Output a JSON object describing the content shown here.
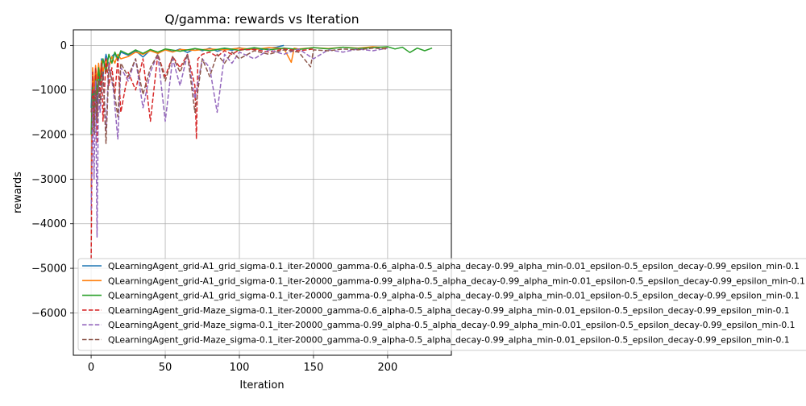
{
  "chart_data": {
    "type": "line",
    "title": "Q/gamma: rewards vs Iteration",
    "xlabel": "Iteration",
    "ylabel": "rewards",
    "xlim": [
      -12,
      243
    ],
    "ylim": [
      -6950,
      350
    ],
    "xticks": [
      0,
      50,
      100,
      150,
      200
    ],
    "yticks": [
      0,
      -1000,
      -2000,
      -3000,
      -4000,
      -5000,
      -6000
    ],
    "ytick_labels": [
      "0",
      "−1000",
      "−2000",
      "−3000",
      "−4000",
      "−5000",
      "−6000"
    ],
    "grid": true,
    "legend_position": "lower-right, overflowing the axes",
    "series": [
      {
        "name": "QLearningAgent_grid-A1_grid_sigma-0.1_iter-20000_gamma-0.6_alpha-0.5_alpha_decay-0.99_alpha_min-0.01_epsilon-0.5_epsilon_decay-0.99_epsilon_min-0.1",
        "color": "#1f77b4",
        "dash": "solid",
        "x": [
          0,
          1,
          2,
          3,
          4,
          5,
          6,
          7,
          8,
          9,
          10,
          12,
          14,
          16,
          18,
          20,
          25,
          30,
          35,
          40,
          45,
          50,
          55,
          60,
          65,
          70,
          75,
          80,
          85,
          90,
          95,
          100,
          105,
          110,
          115,
          120,
          125,
          130
        ],
        "y": [
          -1400,
          -800,
          -1200,
          -600,
          -1600,
          -500,
          -900,
          -300,
          -700,
          -400,
          -200,
          -450,
          -250,
          -180,
          -350,
          -150,
          -220,
          -120,
          -260,
          -100,
          -180,
          -90,
          -140,
          -80,
          -160,
          -70,
          -120,
          -60,
          -130,
          -80,
          -110,
          -50,
          -100,
          -70,
          -90,
          -60,
          -40,
          0
        ]
      },
      {
        "name": "QLearningAgent_grid-A1_grid_sigma-0.1_iter-20000_gamma-0.99_alpha-0.5_alpha_decay-0.99_alpha_min-0.01_epsilon-0.5_epsilon_decay-0.99_epsilon_min-0.1",
        "color": "#ff7f0e",
        "dash": "solid",
        "x": [
          0,
          1,
          2,
          3,
          4,
          5,
          6,
          7,
          8,
          10,
          12,
          14,
          16,
          18,
          20,
          25,
          30,
          35,
          40,
          45,
          50,
          55,
          60,
          70,
          80,
          90,
          100,
          110,
          120,
          130,
          135,
          137,
          140,
          150,
          160,
          170,
          180,
          190,
          200
        ],
        "y": [
          -3200,
          -500,
          -1000,
          -450,
          -800,
          -400,
          -700,
          -350,
          -600,
          -300,
          -500,
          -250,
          -400,
          -200,
          -300,
          -250,
          -150,
          -200,
          -120,
          -180,
          -100,
          -150,
          -90,
          -110,
          -80,
          -100,
          -60,
          -90,
          -50,
          -70,
          -380,
          -60,
          -80,
          -50,
          -70,
          -40,
          -60,
          -30,
          -50
        ]
      },
      {
        "name": "QLearningAgent_grid-A1_grid_sigma-0.1_iter-20000_gamma-0.9_alpha-0.5_alpha_decay-0.99_alpha_min-0.01_epsilon-0.5_epsilon_decay-0.99_epsilon_min-0.1",
        "color": "#2ca02c",
        "dash": "solid",
        "x": [
          0,
          1,
          2,
          3,
          4,
          5,
          6,
          8,
          10,
          12,
          14,
          16,
          18,
          20,
          25,
          30,
          35,
          40,
          45,
          50,
          60,
          70,
          80,
          90,
          100,
          110,
          120,
          130,
          140,
          150,
          160,
          170,
          180,
          190,
          200,
          205,
          210,
          215,
          220,
          225,
          230
        ],
        "y": [
          -2000,
          -900,
          -1500,
          -700,
          -1100,
          -500,
          -800,
          -300,
          -600,
          -200,
          -400,
          -150,
          -300,
          -120,
          -200,
          -100,
          -180,
          -90,
          -150,
          -80,
          -130,
          -70,
          -120,
          -60,
          -110,
          -50,
          -100,
          -60,
          -90,
          -50,
          -80,
          -40,
          -70,
          -50,
          -30,
          -80,
          -40,
          -160,
          -60,
          -120,
          -60
        ]
      },
      {
        "name": "QLearningAgent_grid-Maze_sigma-0.1_iter-20000_gamma-0.6_alpha-0.5_alpha_decay-0.99_alpha_min-0.01_epsilon-0.5_epsilon_decay-0.99_epsilon_min-0.1",
        "color": "#d62728",
        "dash": "dashed",
        "x": [
          0,
          1,
          2,
          3,
          4,
          5,
          6,
          7,
          8,
          10,
          12,
          14,
          16,
          18,
          20,
          25,
          30,
          35,
          40,
          45,
          50,
          55,
          60,
          65,
          70,
          71,
          72,
          75,
          80,
          85,
          90,
          95,
          100,
          110,
          120,
          130,
          140,
          150
        ],
        "y": [
          -4800,
          -600,
          -1800,
          -500,
          -2200,
          -700,
          -1200,
          -400,
          -1700,
          -300,
          -900,
          -500,
          -1100,
          -300,
          -1500,
          -600,
          -1000,
          -300,
          -1700,
          -200,
          -700,
          -250,
          -500,
          -200,
          -900,
          -2100,
          -300,
          -200,
          -150,
          -250,
          -120,
          -200,
          -100,
          -90,
          -150,
          -80,
          -120,
          -80
        ]
      },
      {
        "name": "QLearningAgent_grid-Maze_sigma-0.1_iter-20000_gamma-0.99_alpha-0.5_alpha_decay-0.99_alpha_min-0.01_epsilon-0.5_epsilon_decay-0.99_epsilon_min-0.1",
        "color": "#9467bd",
        "dash": "dashed",
        "x": [
          0,
          1,
          2,
          3,
          4,
          5,
          6,
          8,
          10,
          12,
          15,
          18,
          20,
          25,
          30,
          35,
          40,
          45,
          50,
          55,
          60,
          65,
          70,
          75,
          80,
          85,
          90,
          95,
          100,
          110,
          120,
          130,
          140,
          150,
          160,
          170,
          180,
          190,
          200
        ],
        "y": [
          -3700,
          -1200,
          -3000,
          -800,
          -4300,
          -900,
          -1500,
          -600,
          -1900,
          -400,
          -1000,
          -2100,
          -500,
          -800,
          -300,
          -1400,
          -600,
          -200,
          -1700,
          -300,
          -900,
          -200,
          -1200,
          -300,
          -500,
          -1500,
          -200,
          -400,
          -150,
          -300,
          -100,
          -200,
          -80,
          -300,
          -100,
          -150,
          -80,
          -120,
          -60
        ]
      },
      {
        "name": "QLearningAgent_grid-Maze_sigma-0.1_iter-20000_gamma-0.9_alpha-0.5_alpha_decay-0.99_alpha_min-0.01_epsilon-0.5_epsilon_decay-0.99_epsilon_min-0.1",
        "color": "#8c564b",
        "dash": "dashed",
        "x": [
          0,
          1,
          2,
          3,
          4,
          5,
          6,
          8,
          10,
          12,
          15,
          18,
          20,
          25,
          30,
          35,
          40,
          45,
          50,
          55,
          60,
          65,
          70,
          75,
          80,
          85,
          90,
          95,
          100,
          110,
          120,
          130,
          140,
          148,
          150,
          160,
          170,
          180,
          190,
          200
        ],
        "y": [
          -1500,
          -1200,
          -2000,
          -1000,
          -1700,
          -800,
          -1300,
          -600,
          -2200,
          -500,
          -900,
          -1600,
          -400,
          -700,
          -300,
          -1100,
          -500,
          -200,
          -800,
          -250,
          -600,
          -200,
          -1500,
          -300,
          -700,
          -200,
          -400,
          -150,
          -300,
          -120,
          -200,
          -100,
          -150,
          -480,
          -100,
          -120,
          -80,
          -100,
          -60,
          -80
        ]
      }
    ]
  }
}
